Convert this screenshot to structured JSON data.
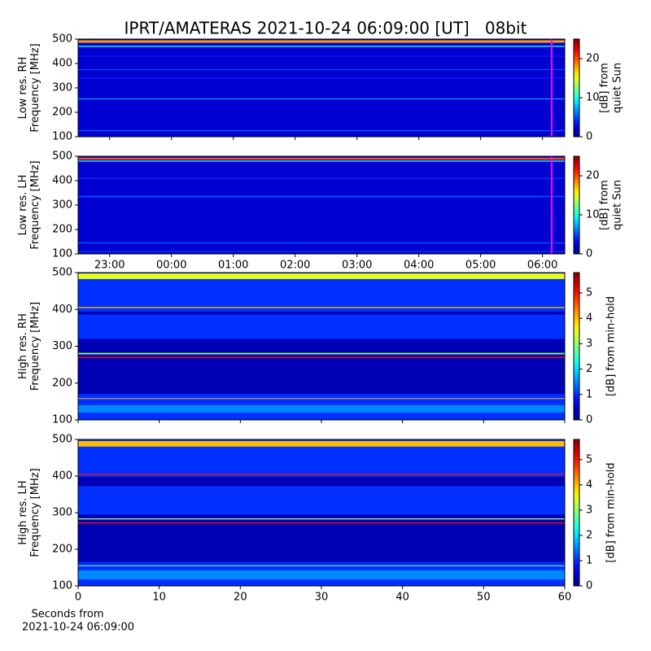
{
  "chart_data": [
    {
      "type": "heatmap",
      "title": "IPRT/AMATERAS 2021-10-24 06:09:00 [UT]   08bit",
      "ylabel": [
        "Low res. RH",
        "Frequency [MHz]"
      ],
      "ylim": [
        100,
        500
      ],
      "yticks": [
        100,
        200,
        300,
        400,
        500
      ],
      "xlim": [
        22.49,
        30.36
      ],
      "xticks": [
        {
          "value": 23,
          "label": "23:00"
        },
        {
          "value": 24,
          "label": "00:00"
        },
        {
          "value": 25,
          "label": "01:00"
        },
        {
          "value": 26,
          "label": "02:00"
        },
        {
          "value": 27,
          "label": "03:00"
        },
        {
          "value": 28,
          "label": "04:00"
        },
        {
          "value": 29,
          "label": "05:00"
        },
        {
          "value": 30,
          "label": "06:00"
        }
      ],
      "show_xticklabels": false,
      "marker_x": 30.15,
      "marker_color": "#ff00ff",
      "clabel": [
        "[dB] from",
        "quiet Sun"
      ],
      "clim": [
        0,
        25
      ],
      "cticks": [
        0,
        10,
        20
      ],
      "background_level": 2,
      "bands": [
        {
          "freq": 490,
          "width": 10,
          "level": 18
        },
        {
          "freq": 470,
          "width": 6,
          "level": 8
        },
        {
          "freq": 430,
          "width": 4,
          "level": 4
        },
        {
          "freq": 375,
          "width": 4,
          "level": 5
        },
        {
          "freq": 340,
          "width": 4,
          "level": 4
        },
        {
          "freq": 255,
          "width": 3,
          "level": 8
        },
        {
          "freq": 125,
          "width": 2,
          "level": 6
        }
      ]
    },
    {
      "type": "heatmap",
      "ylabel": [
        "Low res. LH",
        "Frequency [MHz]"
      ],
      "ylim": [
        100,
        500
      ],
      "yticks": [
        100,
        200,
        300,
        400,
        500
      ],
      "xlim": [
        22.49,
        30.36
      ],
      "xticks": [
        {
          "value": 23,
          "label": "23:00"
        },
        {
          "value": 24,
          "label": "00:00"
        },
        {
          "value": 25,
          "label": "01:00"
        },
        {
          "value": 26,
          "label": "02:00"
        },
        {
          "value": 27,
          "label": "03:00"
        },
        {
          "value": 28,
          "label": "04:00"
        },
        {
          "value": 29,
          "label": "05:00"
        },
        {
          "value": 30,
          "label": "06:00"
        }
      ],
      "show_xticklabels": true,
      "marker_x": 30.15,
      "marker_color": "#ff00ff",
      "clabel": [
        "[dB] from",
        "quiet Sun"
      ],
      "clim": [
        0,
        25
      ],
      "cticks": [
        0,
        10,
        20
      ],
      "background_level": 2,
      "bands": [
        {
          "freq": 490,
          "width": 8,
          "level": 20
        },
        {
          "freq": 480,
          "width": 6,
          "level": 8
        },
        {
          "freq": 410,
          "width": 3,
          "level": 5
        },
        {
          "freq": 335,
          "width": 6,
          "level": 5
        },
        {
          "freq": 145,
          "width": 3,
          "level": 6
        },
        {
          "freq": 110,
          "width": 2,
          "level": 5
        }
      ]
    },
    {
      "type": "heatmap",
      "ylabel": [
        "High res. RH",
        "Frequency [MHz]"
      ],
      "ylim": [
        100,
        500
      ],
      "yticks": [
        100,
        200,
        300,
        400,
        500
      ],
      "xlim": [
        0,
        60
      ],
      "xticks": [
        0,
        10,
        20,
        30,
        40,
        50,
        60
      ],
      "show_xticklabels": false,
      "clabel": [
        "[dB] from min-hold"
      ],
      "clim": [
        0,
        5.8
      ],
      "cticks": [
        0,
        1,
        2,
        3,
        4,
        5
      ],
      "background_level": 1,
      "bands": [
        {
          "freq": 245,
          "width": 150,
          "level": 0.3
        },
        {
          "freq": 490,
          "width": 15,
          "level": 3.5
        },
        {
          "freq": 405,
          "width": 3,
          "level": 4
        },
        {
          "freq": 390,
          "width": 8,
          "level": 0.3
        },
        {
          "freq": 280,
          "width": 4,
          "level": 3
        },
        {
          "freq": 270,
          "width": 3,
          "level": 5
        },
        {
          "freq": 158,
          "width": 2,
          "level": 4
        },
        {
          "freq": 130,
          "width": 20,
          "level": 1.5
        }
      ]
    },
    {
      "type": "heatmap",
      "ylabel": [
        "High res. LH",
        "Frequency [MHz]"
      ],
      "ylim": [
        100,
        500
      ],
      "yticks": [
        100,
        200,
        300,
        400,
        500
      ],
      "xlim": [
        0,
        60
      ],
      "xticks": [
        0,
        10,
        20,
        30,
        40,
        50,
        60
      ],
      "show_xticklabels": true,
      "xlabel": [
        "Seconds from",
        "2021-10-24 06:09:00"
      ],
      "clabel": [
        "[dB] from min-hold"
      ],
      "clim": [
        0,
        5.8
      ],
      "cticks": [
        0,
        1,
        2,
        3,
        4,
        5
      ],
      "background_level": 1,
      "bands": [
        {
          "freq": 230,
          "width": 130,
          "level": 0.3
        },
        {
          "freq": 488,
          "width": 15,
          "level": 4
        },
        {
          "freq": 405,
          "width": 3,
          "level": 5
        },
        {
          "freq": 385,
          "width": 25,
          "level": 0.3
        },
        {
          "freq": 283,
          "width": 3,
          "level": 3
        },
        {
          "freq": 272,
          "width": 3,
          "level": 5
        },
        {
          "freq": 155,
          "width": 2,
          "level": 3
        },
        {
          "freq": 130,
          "width": 25,
          "level": 1.5
        }
      ]
    }
  ]
}
